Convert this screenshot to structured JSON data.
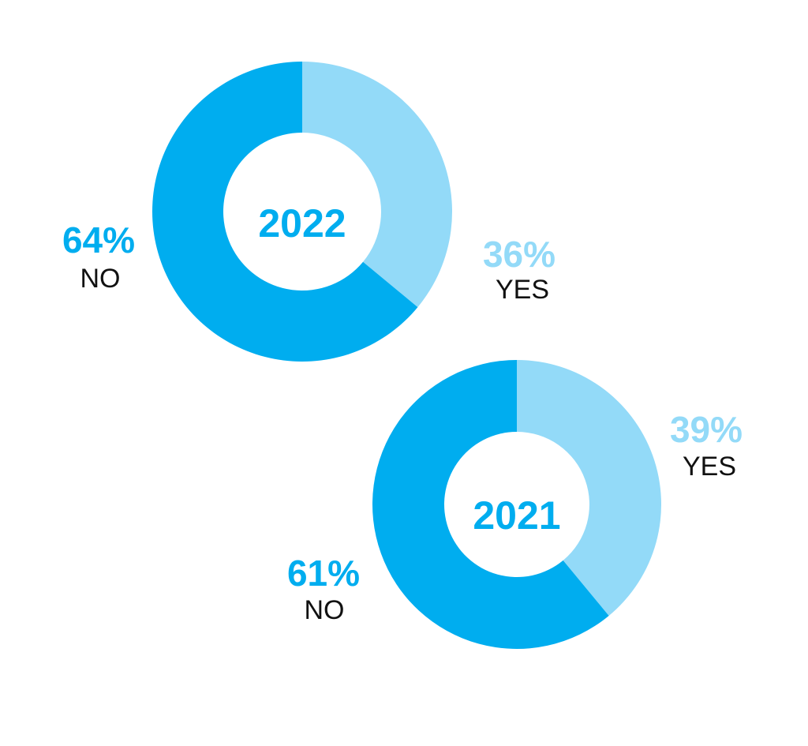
{
  "colors": {
    "no": "#00adef",
    "yes": "#93daf8",
    "text": "#111111"
  },
  "chart_data": [
    {
      "type": "pie",
      "variant": "donut",
      "center_label": "2022",
      "slices": [
        {
          "category": "YES",
          "value": 36,
          "value_label": "36%",
          "color": "#93daf8"
        },
        {
          "category": "NO",
          "value": 64,
          "value_label": "64%",
          "color": "#00adef"
        }
      ]
    },
    {
      "type": "pie",
      "variant": "donut",
      "center_label": "2021",
      "slices": [
        {
          "category": "YES",
          "value": 39,
          "value_label": "39%",
          "color": "#93daf8"
        },
        {
          "category": "NO",
          "value": 61,
          "value_label": "61%",
          "color": "#00adef"
        }
      ]
    }
  ]
}
